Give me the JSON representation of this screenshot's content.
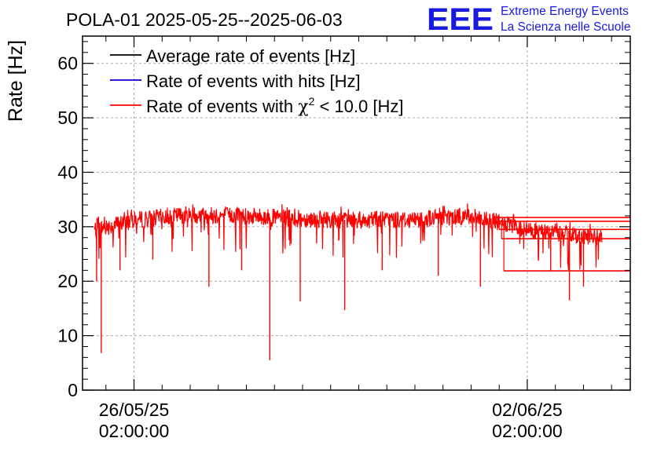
{
  "chart_data": {
    "type": "line",
    "title": "POLA-01 2025-05-25--2025-06-03",
    "ylabel": "Rate [Hz]",
    "xlabel": "",
    "ylim": [
      0,
      65
    ],
    "yticks": [
      0,
      10,
      20,
      30,
      40,
      50,
      60
    ],
    "xlim": [
      "2025-05-25T04:00:00",
      "2025-06-03T22:00:00"
    ],
    "xticks": [
      {
        "date": "2025-05-26T02:00:00",
        "label_date": "26/05/25",
        "label_time": "02:00:00"
      },
      {
        "date": "2025-06-02T02:00:00",
        "label_date": "02/06/25",
        "label_time": "02:00:00"
      }
    ],
    "grid": true,
    "legend_position": "top-left",
    "series": [
      {
        "name": "Average rate of events [Hz]",
        "color": "#000000"
      },
      {
        "name": "Rate of events with hits [Hz]",
        "color": "#0000cc"
      },
      {
        "name_prefix": "Rate of events with ",
        "name_symbol": "χ",
        "name_sup": "2",
        "name_suffix": " < 10.0 [Hz]",
        "color": "#ff0000",
        "start": "2025-05-25T09:00:00",
        "end": "2025-06-03T10:00:00",
        "trend": [
          [
            "2025-05-25T09:00:00",
            29.5
          ],
          [
            "2025-05-26T02:00:00",
            31.2
          ],
          [
            "2025-05-27T00:00:00",
            32.2
          ],
          [
            "2025-05-28T00:00:00",
            32.0
          ],
          [
            "2025-05-29T00:00:00",
            31.5
          ],
          [
            "2025-05-30T00:00:00",
            31.2
          ],
          [
            "2025-05-31T00:00:00",
            31.3
          ],
          [
            "2025-06-01T00:00:00",
            32.0
          ],
          [
            "2025-06-01T12:00:00",
            31.0
          ],
          [
            "2025-06-02T00:00:00",
            29.5
          ],
          [
            "2025-06-03T10:00:00",
            28.0
          ]
        ],
        "dips": [
          [
            "2025-05-25T10:00:00",
            20.0
          ],
          [
            "2025-05-25T12:00:00",
            6.8
          ],
          [
            "2025-05-25T20:00:00",
            22.0
          ],
          [
            "2025-05-26T10:00:00",
            24.0
          ],
          [
            "2025-05-27T10:00:00",
            19.0
          ],
          [
            "2025-05-28T00:00:00",
            22.0
          ],
          [
            "2025-05-28T12:00:00",
            5.5
          ],
          [
            "2025-05-29T01:00:00",
            16.3
          ],
          [
            "2025-05-29T20:00:00",
            14.7
          ],
          [
            "2025-05-30T12:00:00",
            22.0
          ],
          [
            "2025-05-31T12:00:00",
            21.0
          ],
          [
            "2025-06-01T06:00:00",
            19.0
          ],
          [
            "2025-06-02T12:00:00",
            22.0
          ],
          [
            "2025-06-02T20:00:00",
            16.5
          ],
          [
            "2025-06-03T02:00:00",
            19.0
          ]
        ],
        "flat_segments": [
          [
            "2025-06-01T12:00:00",
            31.7
          ],
          [
            "2025-06-01T13:00:00",
            31.0
          ],
          [
            "2025-06-01T14:00:00",
            29.5
          ],
          [
            "2025-06-01T15:00:00",
            27.8
          ],
          [
            "2025-06-01T16:00:00",
            21.9
          ]
        ]
      }
    ]
  },
  "logo": {
    "text": "EEE",
    "line1": "Extreme Energy Events",
    "line2": "La Scienza nelle Scuole"
  }
}
